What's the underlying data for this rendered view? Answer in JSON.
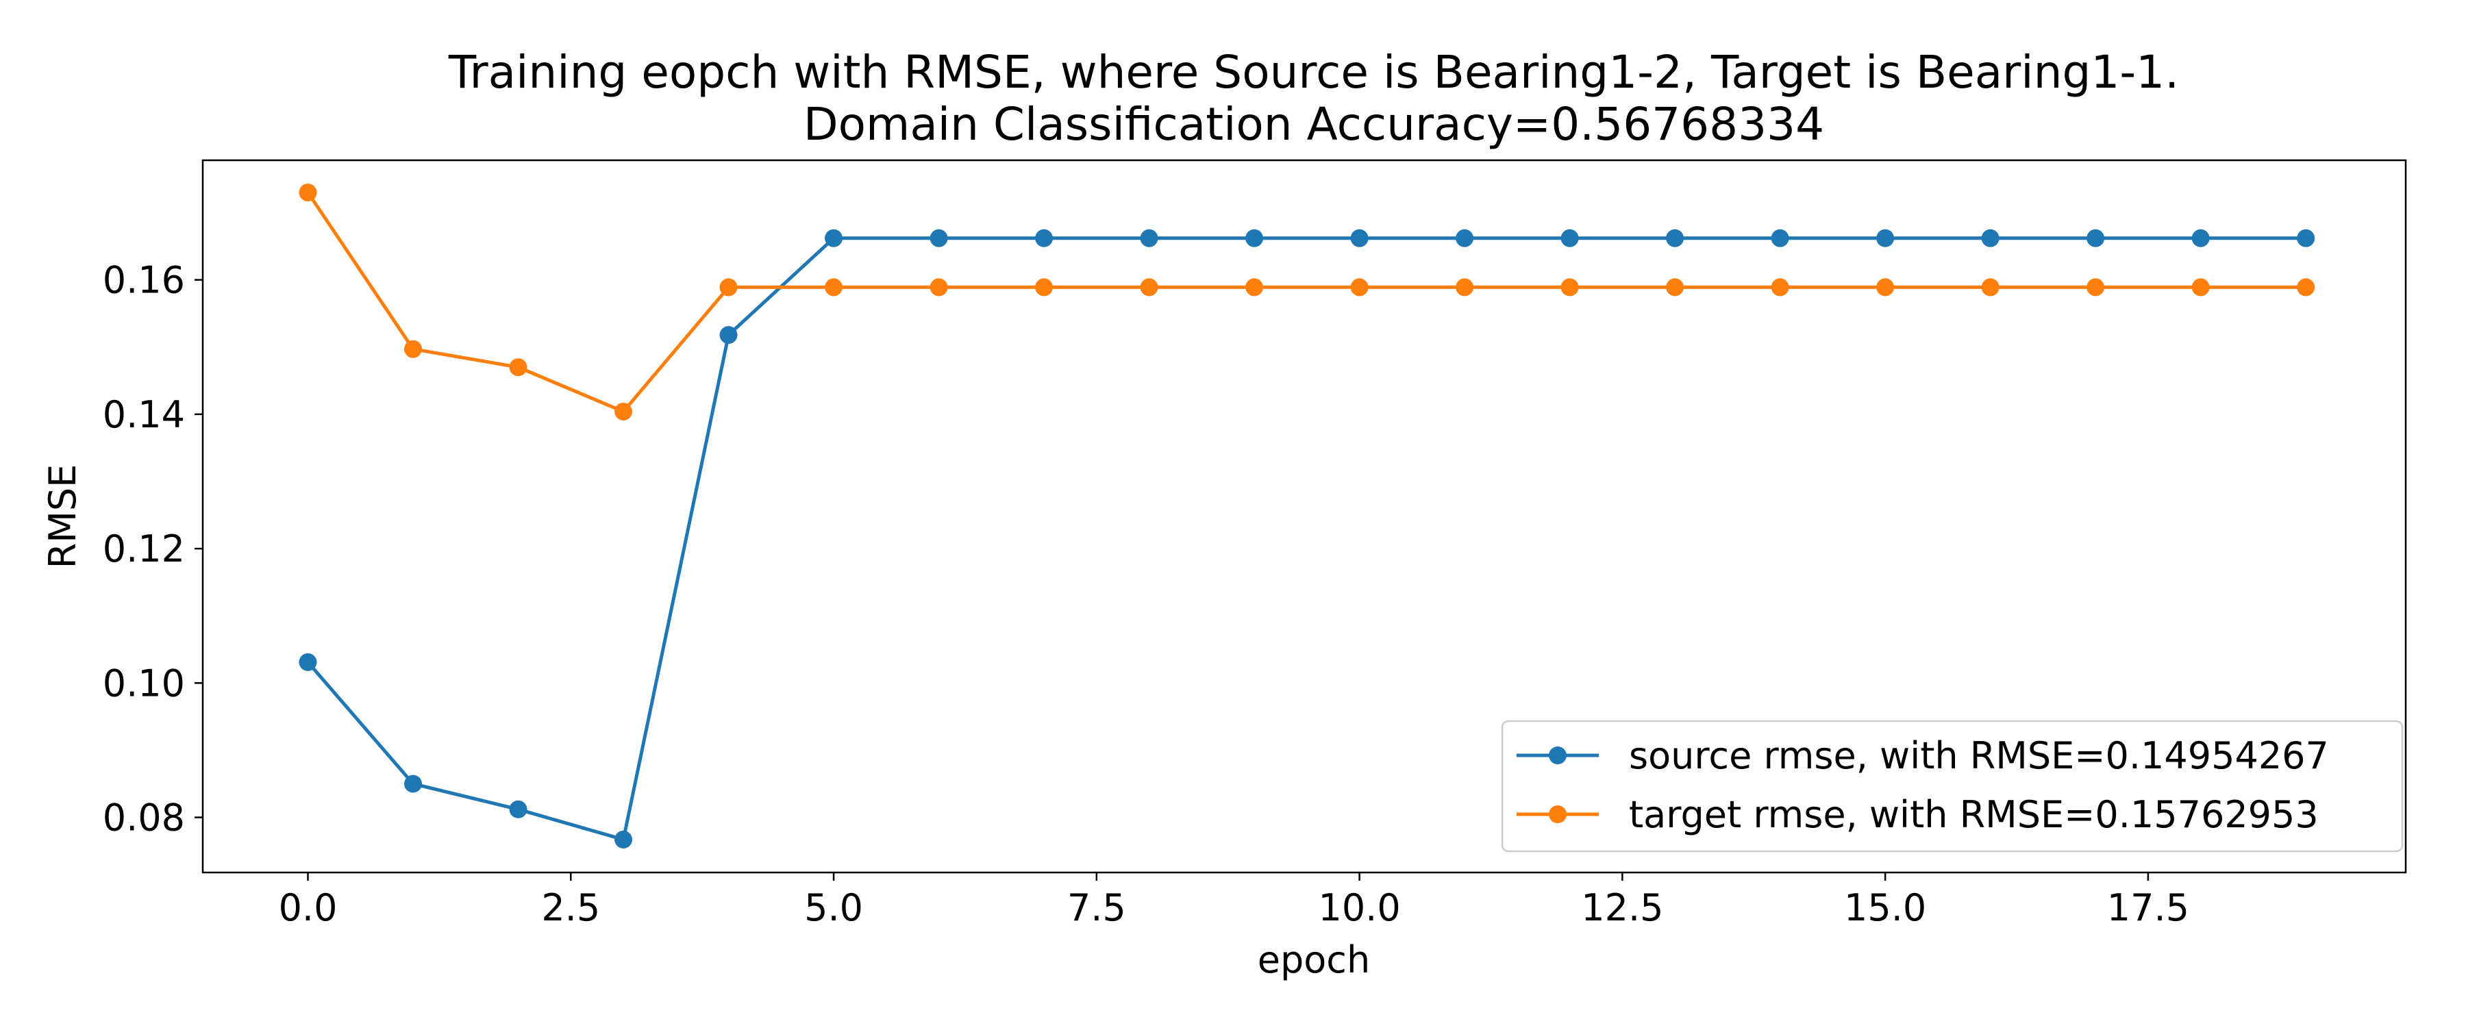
{
  "chart_data": {
    "type": "line",
    "title": "Training eopch with RMSE, where Source is Bearing1-2, Target is Bearing1-1.",
    "subtitle": "Domain Classification Accuracy=0.56768334",
    "xlabel": "epoch",
    "ylabel": "RMSE",
    "xlim": [
      -1.0,
      19.95
    ],
    "ylim": [
      0.0718,
      0.1778
    ],
    "x_ticks": [
      0.0,
      2.5,
      5.0,
      7.5,
      10.0,
      12.5,
      15.0,
      17.5
    ],
    "x_tick_labels": [
      "0.0",
      "2.5",
      "5.0",
      "7.5",
      "10.0",
      "12.5",
      "15.0",
      "17.5"
    ],
    "y_ticks": [
      0.08,
      0.1,
      0.12,
      0.14,
      0.16
    ],
    "y_tick_labels": [
      "0.08",
      "0.10",
      "0.12",
      "0.14",
      "0.16"
    ],
    "grid": false,
    "legend_position": "lower right",
    "x": [
      0,
      1,
      2,
      3,
      4,
      5,
      6,
      7,
      8,
      9,
      10,
      11,
      12,
      13,
      14,
      15,
      16,
      17,
      18,
      19
    ],
    "series": [
      {
        "name": "source rmse, with RMSE=0.14954267",
        "color": "#1f77b4",
        "marker": "circle",
        "values": [
          0.1031,
          0.085,
          0.0812,
          0.0767,
          0.1518,
          0.1662,
          0.1662,
          0.1662,
          0.1662,
          0.1662,
          0.1662,
          0.1662,
          0.1662,
          0.1662,
          0.1662,
          0.1662,
          0.1662,
          0.1662,
          0.1662,
          0.1662
        ]
      },
      {
        "name": "target rmse, with RMSE=0.15762953",
        "color": "#ff7f0e",
        "marker": "circle",
        "values": [
          0.173,
          0.1497,
          0.147,
          0.1404,
          0.1589,
          0.1589,
          0.1589,
          0.1589,
          0.1589,
          0.1589,
          0.1589,
          0.1589,
          0.1589,
          0.1589,
          0.1589,
          0.1589,
          0.1589,
          0.1589,
          0.1589,
          0.1589
        ]
      }
    ]
  }
}
